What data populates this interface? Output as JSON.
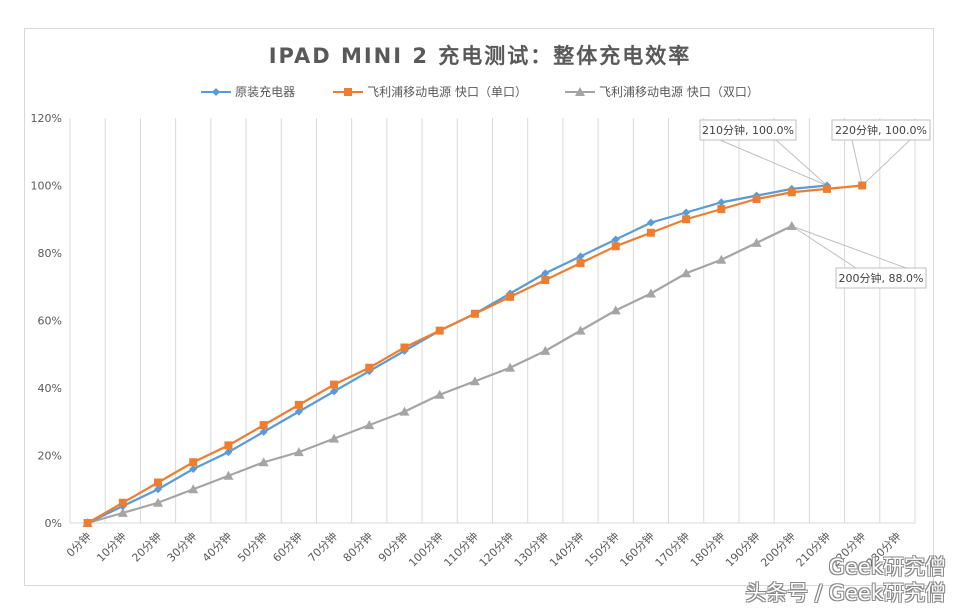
{
  "chart_data": {
    "type": "line",
    "title": "IPAD MINI 2 充电测试：整体充电效率",
    "xlabel": "",
    "ylabel": "",
    "ylim": [
      0,
      1.2
    ],
    "yticks": [
      "0%",
      "20%",
      "40%",
      "60%",
      "80%",
      "100%",
      "120%"
    ],
    "grid": "vertical",
    "legend_position": "top",
    "categories": [
      "0分钟",
      "10分钟",
      "20分钟",
      "30分钟",
      "40分钟",
      "50分钟",
      "60分钟",
      "70分钟",
      "80分钟",
      "90分钟",
      "100分钟",
      "110分钟",
      "120分钟",
      "130分钟",
      "140分钟",
      "150分钟",
      "160分钟",
      "170分钟",
      "180分钟",
      "190分钟",
      "200分钟",
      "210分钟",
      "220分钟",
      "230分钟"
    ],
    "series": [
      {
        "name": "原装充电器",
        "color": "#5b9bd5",
        "marker": "diamond",
        "values": [
          0,
          0.05,
          0.1,
          0.16,
          0.21,
          0.27,
          0.33,
          0.39,
          0.45,
          0.51,
          0.57,
          0.62,
          0.68,
          0.74,
          0.79,
          0.84,
          0.89,
          0.92,
          0.95,
          0.97,
          0.99,
          1.0
        ]
      },
      {
        "name": "飞利浦移动电源 快口（单口）",
        "color": "#ed7d31",
        "marker": "square",
        "values": [
          0,
          0.06,
          0.12,
          0.18,
          0.23,
          0.29,
          0.35,
          0.41,
          0.46,
          0.52,
          0.57,
          0.62,
          0.67,
          0.72,
          0.77,
          0.82,
          0.86,
          0.9,
          0.93,
          0.96,
          0.98,
          0.99,
          1.0
        ]
      },
      {
        "name": "飞利浦移动电源 快口（双口）",
        "color": "#a5a5a5",
        "marker": "triangle",
        "values": [
          0,
          0.03,
          0.06,
          0.1,
          0.14,
          0.18,
          0.21,
          0.25,
          0.29,
          0.33,
          0.38,
          0.42,
          0.46,
          0.51,
          0.57,
          0.63,
          0.68,
          0.74,
          0.78,
          0.83,
          0.88
        ]
      }
    ],
    "annotations": [
      {
        "text": "210分钟, 100.0%",
        "series": 0,
        "index": 21
      },
      {
        "text": "220分钟, 100.0%",
        "series": 1,
        "index": 22
      },
      {
        "text": "200分钟, 88.0%",
        "series": 2,
        "index": 20
      }
    ]
  },
  "watermark": {
    "line1": "Geek研究僧",
    "line2": "头条号 / Geek研究僧"
  }
}
